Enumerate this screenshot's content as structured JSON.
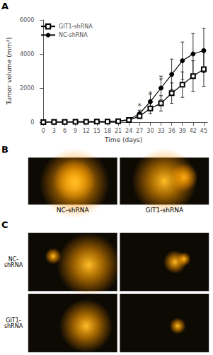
{
  "chart_data": [
    {
      "type": "line",
      "title": "A",
      "xlabel": "Time (days)",
      "ylabel": "Tumor volume (mm³)",
      "x": [
        0,
        3,
        6,
        9,
        12,
        15,
        18,
        21,
        24,
        27,
        30,
        33,
        36,
        39,
        42,
        45
      ],
      "series": [
        {
          "name": "NC-shRNA",
          "color": "#000000",
          "marker": "circle",
          "values": [
            0,
            10,
            15,
            20,
            25,
            30,
            40,
            60,
            150,
            500,
            1200,
            2000,
            2800,
            3600,
            4000,
            4200
          ],
          "errors": [
            0,
            5,
            8,
            10,
            12,
            15,
            18,
            25,
            60,
            200,
            450,
            700,
            900,
            1100,
            1200,
            1300
          ]
        },
        {
          "name": "GIT1-shRNA",
          "color": "#000000",
          "marker": "open_square",
          "values": [
            0,
            8,
            12,
            18,
            22,
            28,
            35,
            50,
            120,
            350,
            800,
            1100,
            1700,
            2200,
            2700,
            3100
          ],
          "errors": [
            0,
            4,
            6,
            8,
            10,
            12,
            15,
            20,
            50,
            150,
            300,
            450,
            600,
            750,
            900,
            1000
          ]
        }
      ],
      "annotations": [
        {
          "text": "*",
          "x": 27,
          "y": 700
        },
        {
          "text": "*",
          "x": 30,
          "y": 1400
        },
        {
          "text": "*",
          "x": 33,
          "y": 2200
        }
      ],
      "xlim": [
        -1,
        46
      ],
      "xticks": [
        0,
        3,
        6,
        9,
        12,
        15,
        18,
        21,
        24,
        27,
        30,
        33,
        36,
        39,
        42,
        45
      ],
      "ylim": [
        0,
        6000
      ],
      "yticks": [
        0,
        2000,
        4000,
        6000
      ],
      "grid": false,
      "legend": "upper left"
    },
    {
      "type": "image",
      "title": "B",
      "categories": [
        "NC-shRNA",
        "GIT1-shRNA"
      ]
    },
    {
      "type": "image",
      "title": "C",
      "categories": [
        "NC-\nshRNA",
        "GIT1-\nshRNA"
      ]
    }
  ]
}
